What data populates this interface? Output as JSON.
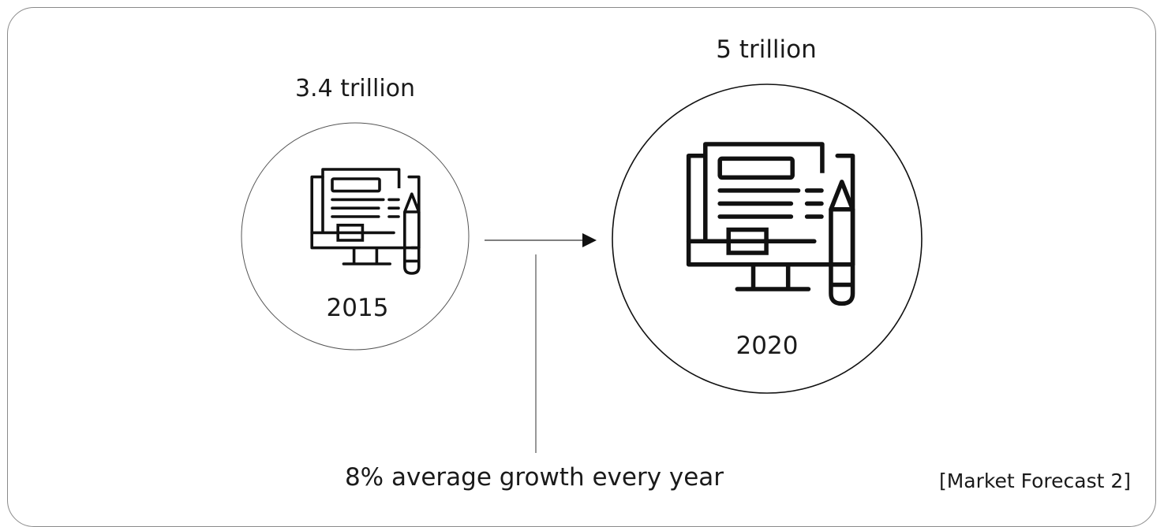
{
  "values": {
    "start": "3.4 trillion",
    "end": "5 trillion"
  },
  "years": {
    "start": "2015",
    "end": "2020"
  },
  "growth_note": "8% average growth every year",
  "caption": "[Market Forecast 2]",
  "icons": {
    "start": "monitor-document-pencil-icon",
    "end": "monitor-document-pencil-icon",
    "connector": "arrow-right-icon"
  },
  "colors": {
    "stroke": "#111111",
    "thin_stroke": "#555555",
    "border": "#8a8a8a"
  }
}
